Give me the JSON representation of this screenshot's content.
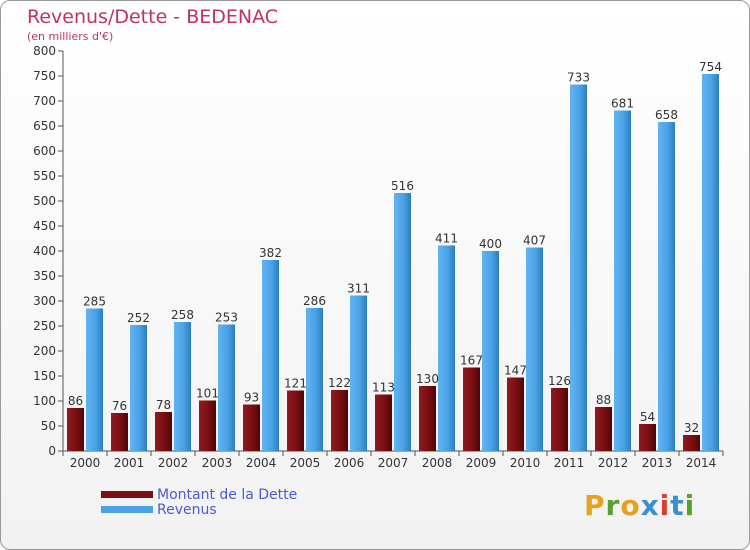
{
  "title": "Revenus/Dette - BEDENAC",
  "subtitle": "(en milliers d'€)",
  "legend": {
    "dette": "Montant de la Dette",
    "revenus": "Revenus"
  },
  "logo_text": "Proxiti",
  "colors": {
    "dette": "#7a0e12",
    "revenus": "#4aa3e6",
    "title": "#c0306a",
    "legend_text": "#4a5bd0"
  },
  "chart_data": {
    "type": "bar",
    "categories": [
      "2000",
      "2001",
      "2002",
      "2003",
      "2004",
      "2005",
      "2006",
      "2007",
      "2008",
      "2009",
      "2010",
      "2011",
      "2012",
      "2013",
      "2014"
    ],
    "series": [
      {
        "name": "Montant de la Dette",
        "values": [
          86,
          76,
          78,
          101,
          93,
          121,
          122,
          113,
          130,
          167,
          147,
          126,
          88,
          54,
          32
        ]
      },
      {
        "name": "Revenus",
        "values": [
          285,
          252,
          258,
          253,
          382,
          286,
          311,
          516,
          411,
          400,
          407,
          733,
          681,
          658,
          754
        ]
      }
    ],
    "ylim": [
      0,
      800
    ],
    "yticks": [
      0,
      50,
      100,
      150,
      200,
      250,
      300,
      350,
      400,
      450,
      500,
      550,
      600,
      650,
      700,
      750,
      800
    ],
    "grid": false,
    "legend_position": "bottom-left"
  }
}
